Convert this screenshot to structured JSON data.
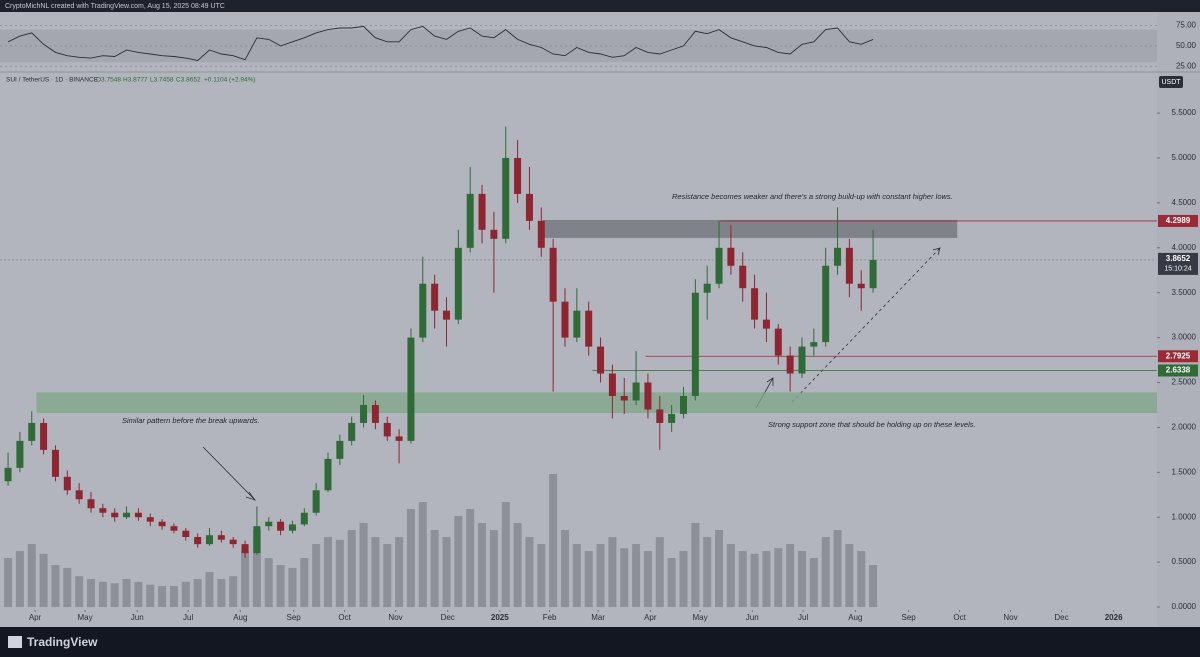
{
  "chart_data": {
    "type": "candlestick",
    "header": "CryptoMichNL created with TradingView.com, Aug 15, 2025 08:49 UTC",
    "legend": {
      "symbol": "SUI / TetherUS · 1D · BINANCE",
      "o": "O3.7548",
      "h": "H3.8777",
      "l": "L3.7458",
      "c": "C3.8652",
      "change": "+0.1104 (+2.94%)"
    },
    "currency": "USDT",
    "brand": "TradingView",
    "annotations": [
      {
        "text": "Resistance becomes weaker and there's a strong build-up with constant higher lows."
      },
      {
        "text": "Similar pattern before the break upwards."
      },
      {
        "text": "Strong support zone that should be holding up on these levels."
      }
    ],
    "up_color": "#2f6b36",
    "down_color": "#8e2530",
    "x": [
      0,
      1,
      2,
      3,
      4,
      5,
      6,
      7,
      8,
      9,
      10,
      11,
      12,
      13,
      14,
      15,
      16,
      17,
      18,
      19,
      20,
      21,
      22,
      23,
      24,
      25,
      26,
      27,
      28,
      29,
      30,
      31,
      32,
      33,
      34,
      35,
      36,
      37,
      38,
      39,
      40,
      41,
      42,
      43,
      44,
      45,
      46,
      47,
      48,
      49,
      50,
      51,
      52,
      53,
      54,
      55,
      56,
      57,
      58,
      59,
      60,
      61,
      62,
      63,
      64,
      65,
      66,
      67,
      68,
      69,
      70,
      71,
      72,
      73
    ],
    "series": [
      {
        "values": [
          [
            1.4,
            1.72,
            1.35,
            1.55
          ],
          [
            1.55,
            1.95,
            1.5,
            1.85
          ],
          [
            1.85,
            2.18,
            1.8,
            2.05
          ],
          [
            2.05,
            2.1,
            1.7,
            1.75
          ],
          [
            1.75,
            1.8,
            1.4,
            1.45
          ],
          [
            1.45,
            1.52,
            1.25,
            1.3
          ],
          [
            1.3,
            1.38,
            1.15,
            1.2
          ],
          [
            1.2,
            1.28,
            1.05,
            1.1
          ],
          [
            1.1,
            1.15,
            1.0,
            1.05
          ],
          [
            1.05,
            1.1,
            0.95,
            1.0
          ],
          [
            1.0,
            1.12,
            0.98,
            1.05
          ],
          [
            1.05,
            1.1,
            0.96,
            1.0
          ],
          [
            1.0,
            1.04,
            0.9,
            0.95
          ],
          [
            0.95,
            0.98,
            0.86,
            0.9
          ],
          [
            0.9,
            0.93,
            0.82,
            0.85
          ],
          [
            0.85,
            0.88,
            0.74,
            0.78
          ],
          [
            0.78,
            0.82,
            0.66,
            0.7
          ],
          [
            0.7,
            0.88,
            0.68,
            0.8
          ],
          [
            0.8,
            0.85,
            0.72,
            0.75
          ],
          [
            0.75,
            0.78,
            0.66,
            0.7
          ],
          [
            0.7,
            0.74,
            0.55,
            0.6
          ],
          [
            0.6,
            1.12,
            0.58,
            0.9
          ],
          [
            0.9,
            1.0,
            0.85,
            0.95
          ],
          [
            0.95,
            0.98,
            0.8,
            0.85
          ],
          [
            0.85,
            0.96,
            0.82,
            0.92
          ],
          [
            0.92,
            1.1,
            0.9,
            1.05
          ],
          [
            1.05,
            1.38,
            1.02,
            1.3
          ],
          [
            1.3,
            1.72,
            1.28,
            1.65
          ],
          [
            1.65,
            1.92,
            1.58,
            1.85
          ],
          [
            1.85,
            2.12,
            1.8,
            2.05
          ],
          [
            2.05,
            2.36,
            2.0,
            2.25
          ],
          [
            2.25,
            2.3,
            1.98,
            2.05
          ],
          [
            2.05,
            2.12,
            1.85,
            1.9
          ],
          [
            1.9,
            1.98,
            1.6,
            1.85
          ],
          [
            1.85,
            3.1,
            1.82,
            3.0
          ],
          [
            3.0,
            3.9,
            2.95,
            3.6
          ],
          [
            3.6,
            3.7,
            3.1,
            3.3
          ],
          [
            3.3,
            3.45,
            2.9,
            3.2
          ],
          [
            3.2,
            4.2,
            3.15,
            4.0
          ],
          [
            4.0,
            4.9,
            3.95,
            4.6
          ],
          [
            4.6,
            4.7,
            4.05,
            4.2
          ],
          [
            4.2,
            4.4,
            3.5,
            4.1
          ],
          [
            4.1,
            5.35,
            4.05,
            5.0
          ],
          [
            5.0,
            5.2,
            4.5,
            4.6
          ],
          [
            4.6,
            4.9,
            4.2,
            4.3
          ],
          [
            4.3,
            4.45,
            3.9,
            4.0
          ],
          [
            4.0,
            4.1,
            2.4,
            3.4
          ],
          [
            3.4,
            3.55,
            2.9,
            3.0
          ],
          [
            3.0,
            3.55,
            2.95,
            3.3
          ],
          [
            3.3,
            3.4,
            2.8,
            2.9
          ],
          [
            2.9,
            3.0,
            2.5,
            2.6
          ],
          [
            2.6,
            2.7,
            2.1,
            2.35
          ],
          [
            2.35,
            2.55,
            2.15,
            2.3
          ],
          [
            2.3,
            2.85,
            2.25,
            2.5
          ],
          [
            2.5,
            2.6,
            2.1,
            2.2
          ],
          [
            2.2,
            2.35,
            1.75,
            2.05
          ],
          [
            2.05,
            2.25,
            1.95,
            2.15
          ],
          [
            2.15,
            2.45,
            2.1,
            2.35
          ],
          [
            2.35,
            3.65,
            2.3,
            3.5
          ],
          [
            3.5,
            3.8,
            3.2,
            3.6
          ],
          [
            3.6,
            4.3,
            3.55,
            4.0
          ],
          [
            4.0,
            4.25,
            3.7,
            3.8
          ],
          [
            3.8,
            3.95,
            3.4,
            3.55
          ],
          [
            3.55,
            3.7,
            3.1,
            3.2
          ],
          [
            3.2,
            3.5,
            2.95,
            3.1
          ],
          [
            3.1,
            3.15,
            2.7,
            2.8
          ],
          [
            2.8,
            2.9,
            2.4,
            2.6
          ],
          [
            2.6,
            3.0,
            2.55,
            2.9
          ],
          [
            2.9,
            3.1,
            2.8,
            2.95
          ],
          [
            2.95,
            4.0,
            2.9,
            3.8
          ],
          [
            3.8,
            4.45,
            3.7,
            4.0
          ],
          [
            4.0,
            4.1,
            3.45,
            3.6
          ],
          [
            3.6,
            3.75,
            3.3,
            3.55
          ],
          [
            3.55,
            4.2,
            3.5,
            3.8652
          ]
        ]
      }
    ],
    "volume": {
      "color": "#7d8089",
      "vlim": [
        0,
        1
      ],
      "values": [
        0.35,
        0.4,
        0.45,
        0.38,
        0.3,
        0.28,
        0.22,
        0.2,
        0.18,
        0.17,
        0.2,
        0.18,
        0.16,
        0.15,
        0.15,
        0.18,
        0.2,
        0.25,
        0.2,
        0.22,
        0.4,
        0.55,
        0.35,
        0.3,
        0.28,
        0.35,
        0.45,
        0.5,
        0.48,
        0.55,
        0.6,
        0.5,
        0.45,
        0.5,
        0.7,
        0.75,
        0.55,
        0.5,
        0.65,
        0.7,
        0.6,
        0.55,
        0.75,
        0.6,
        0.5,
        0.45,
        0.95,
        0.55,
        0.45,
        0.4,
        0.45,
        0.5,
        0.42,
        0.45,
        0.4,
        0.5,
        0.35,
        0.4,
        0.6,
        0.5,
        0.55,
        0.45,
        0.4,
        0.38,
        0.4,
        0.42,
        0.45,
        0.4,
        0.35,
        0.5,
        0.55,
        0.45,
        0.4,
        0.3
      ]
    },
    "rsi": {
      "color": "#2a2e39",
      "band": [
        30,
        70
      ],
      "ylim": [
        17.9,
        91.7
      ],
      "yticks": [
        {
          "value": 75,
          "label": "75.00"
        },
        {
          "value": 50,
          "label": "50.00"
        },
        {
          "value": 25,
          "label": "25.00"
        }
      ],
      "values": [
        55,
        62,
        66,
        52,
        42,
        38,
        36,
        35,
        38,
        37,
        45,
        42,
        40,
        38,
        37,
        35,
        32,
        45,
        40,
        38,
        33,
        60,
        58,
        50,
        55,
        60,
        66,
        70,
        72,
        72,
        74,
        60,
        55,
        55,
        70,
        74,
        62,
        58,
        68,
        72,
        62,
        60,
        70,
        58,
        52,
        48,
        40,
        38,
        48,
        42,
        40,
        36,
        38,
        48,
        42,
        40,
        45,
        50,
        68,
        65,
        70,
        60,
        55,
        50,
        48,
        42,
        40,
        52,
        55,
        70,
        72,
        55,
        52,
        58
      ]
    },
    "zones": [
      {
        "y": [
          4.11,
          4.31
        ],
        "x": [
          45.1,
          80.1
        ],
        "color": "#6f727a"
      },
      {
        "y": [
          2.16,
          2.39
        ],
        "x": [
          2.4,
          96.96
        ],
        "color": "#7fa589"
      }
    ],
    "levels": [
      {
        "value": 4.2989,
        "from": 60.1,
        "color": "#9a2b36"
      },
      {
        "value": 2.7925,
        "from": 53.8,
        "color": "#9a2b36"
      },
      {
        "value": 2.6338,
        "from": 49.3,
        "color": "#2f6b36"
      }
    ],
    "last": {
      "value": 3.8652,
      "countdown": "15:10:24",
      "color": "#363a45"
    },
    "ylim": [
      -0.033,
      5.924
    ],
    "yticks": [
      {
        "value": 5.5,
        "label": "5.5000"
      },
      {
        "value": 5,
        "label": "5.0000"
      },
      {
        "value": 4.5,
        "label": "4.5000"
      },
      {
        "value": 4,
        "label": "4.0000"
      },
      {
        "value": 3.5,
        "label": "3.5000"
      },
      {
        "value": 3,
        "label": "3.0000"
      },
      {
        "value": 2.5,
        "label": "2.5000"
      },
      {
        "value": 2,
        "label": "2.0000"
      },
      {
        "value": 1.5,
        "label": "1.5000"
      },
      {
        "value": 1,
        "label": "1.0000"
      },
      {
        "value": 0.5,
        "label": "0.5000"
      },
      {
        "value": 0,
        "label": "0.0000"
      }
    ],
    "xlim": [
      -0.68,
      96.96
    ],
    "xticks": [
      {
        "value": 2.28,
        "label": "Apr"
      },
      {
        "value": 6.5,
        "label": "May"
      },
      {
        "value": 10.9,
        "label": "Jun"
      },
      {
        "value": 15.2,
        "label": "Jul"
      },
      {
        "value": 19.6,
        "label": "Aug"
      },
      {
        "value": 24.1,
        "label": "Sep"
      },
      {
        "value": 28.4,
        "label": "Oct"
      },
      {
        "value": 32.7,
        "label": "Nov"
      },
      {
        "value": 37.1,
        "label": "Dec"
      },
      {
        "value": 41.5,
        "label": "2025"
      },
      {
        "value": 45.7,
        "label": "Feb"
      },
      {
        "value": 49.8,
        "label": "Mar"
      },
      {
        "value": 54.2,
        "label": "Apr"
      },
      {
        "value": 58.4,
        "label": "May"
      },
      {
        "value": 62.8,
        "label": "Jun"
      },
      {
        "value": 67.1,
        "label": "Jul"
      },
      {
        "value": 71.5,
        "label": "Aug"
      },
      {
        "value": 76.0,
        "label": "Sep"
      },
      {
        "value": 80.3,
        "label": "Oct"
      },
      {
        "value": 84.6,
        "label": "Nov"
      },
      {
        "value": 88.9,
        "label": "Dec"
      },
      {
        "value": 93.3,
        "label": "2026"
      }
    ]
  }
}
